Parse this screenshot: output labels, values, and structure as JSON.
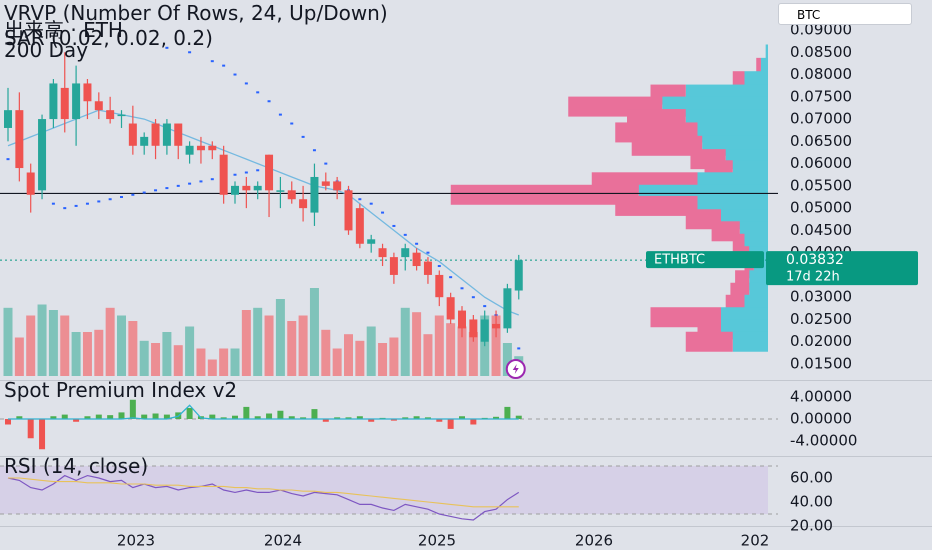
{
  "ticker": "BTC",
  "legend": {
    "line1": "VRVP (Number Of Rows, 24, Up/Down)",
    "line2": "出来高 · ETH",
    "line3": "SAR (0.02, 0.02, 0.2)",
    "line4": "200 Day"
  },
  "price_badge": {
    "symbol": "ETHBTC",
    "price": "0.03832",
    "countdown": "17d 22h"
  },
  "spot_title": "Spot Premium Index v2",
  "rsi_title": "RSI (14, close)",
  "colors": {
    "up": "#26a69a",
    "down": "#ef5350",
    "vol_up": "#7fc3ba",
    "vol_down": "#ec8e93",
    "vp_up": "#57c8d9",
    "vp_down": "#e9709a",
    "ma": "#74b9e0",
    "sar": "#2962ff",
    "rsi": "#7e57c2",
    "rsi_ma": "#e8c25a",
    "spot_line": "#2fb3d1",
    "spot_up": "#4caf50",
    "spot_down": "#ef5350",
    "badge": "#089981"
  },
  "chart_data": [
    {
      "type": "candlestick",
      "name": "ETHBTC",
      "yaxis_ticks": [
        "0.09000",
        "0.08500",
        "0.08000",
        "0.07500",
        "0.07000",
        "0.06500",
        "0.06000",
        "0.05500",
        "0.05000",
        "0.04500",
        "0.04000",
        "0.03500",
        "0.03000",
        "0.02500",
        "0.02000",
        "0.01500"
      ],
      "ylim": [
        0.015,
        0.09
      ],
      "xaxis_ticks": [
        "2023",
        "2024",
        "2025",
        "2026",
        "202"
      ],
      "horizontal_line": 0.0533,
      "last_price": 0.03832,
      "candles": [
        {
          "o": 0.068,
          "h": 0.077,
          "l": 0.065,
          "c": 0.072
        },
        {
          "o": 0.072,
          "h": 0.076,
          "l": 0.056,
          "c": 0.059
        },
        {
          "o": 0.058,
          "h": 0.06,
          "l": 0.049,
          "c": 0.053
        },
        {
          "o": 0.054,
          "h": 0.071,
          "l": 0.052,
          "c": 0.07
        },
        {
          "o": 0.07,
          "h": 0.079,
          "l": 0.068,
          "c": 0.078
        },
        {
          "o": 0.077,
          "h": 0.085,
          "l": 0.067,
          "c": 0.07
        },
        {
          "o": 0.07,
          "h": 0.082,
          "l": 0.064,
          "c": 0.078
        },
        {
          "o": 0.078,
          "h": 0.079,
          "l": 0.07,
          "c": 0.074
        },
        {
          "o": 0.074,
          "h": 0.076,
          "l": 0.07,
          "c": 0.072
        },
        {
          "o": 0.072,
          "h": 0.075,
          "l": 0.069,
          "c": 0.07
        },
        {
          "o": 0.071,
          "h": 0.072,
          "l": 0.068,
          "c": 0.071
        },
        {
          "o": 0.069,
          "h": 0.073,
          "l": 0.062,
          "c": 0.064
        },
        {
          "o": 0.064,
          "h": 0.067,
          "l": 0.062,
          "c": 0.066
        },
        {
          "o": 0.069,
          "h": 0.07,
          "l": 0.061,
          "c": 0.064
        },
        {
          "o": 0.064,
          "h": 0.07,
          "l": 0.062,
          "c": 0.069
        },
        {
          "o": 0.069,
          "h": 0.069,
          "l": 0.061,
          "c": 0.064
        },
        {
          "o": 0.062,
          "h": 0.065,
          "l": 0.06,
          "c": 0.064
        },
        {
          "o": 0.064,
          "h": 0.066,
          "l": 0.06,
          "c": 0.063
        },
        {
          "o": 0.064,
          "h": 0.065,
          "l": 0.061,
          "c": 0.063
        },
        {
          "o": 0.062,
          "h": 0.064,
          "l": 0.051,
          "c": 0.053
        },
        {
          "o": 0.053,
          "h": 0.056,
          "l": 0.051,
          "c": 0.055
        },
        {
          "o": 0.055,
          "h": 0.057,
          "l": 0.05,
          "c": 0.054
        },
        {
          "o": 0.054,
          "h": 0.056,
          "l": 0.052,
          "c": 0.055
        },
        {
          "o": 0.062,
          "h": 0.062,
          "l": 0.048,
          "c": 0.054
        },
        {
          "o": 0.054,
          "h": 0.057,
          "l": 0.05,
          "c": 0.054
        },
        {
          "o": 0.054,
          "h": 0.056,
          "l": 0.051,
          "c": 0.052
        },
        {
          "o": 0.052,
          "h": 0.055,
          "l": 0.047,
          "c": 0.05
        },
        {
          "o": 0.049,
          "h": 0.06,
          "l": 0.046,
          "c": 0.057
        },
        {
          "o": 0.056,
          "h": 0.058,
          "l": 0.054,
          "c": 0.055
        },
        {
          "o": 0.056,
          "h": 0.057,
          "l": 0.052,
          "c": 0.054
        },
        {
          "o": 0.054,
          "h": 0.055,
          "l": 0.044,
          "c": 0.045
        },
        {
          "o": 0.05,
          "h": 0.051,
          "l": 0.041,
          "c": 0.042
        },
        {
          "o": 0.042,
          "h": 0.044,
          "l": 0.04,
          "c": 0.043
        },
        {
          "o": 0.041,
          "h": 0.042,
          "l": 0.037,
          "c": 0.039
        },
        {
          "o": 0.039,
          "h": 0.04,
          "l": 0.033,
          "c": 0.035
        },
        {
          "o": 0.039,
          "h": 0.042,
          "l": 0.036,
          "c": 0.041
        },
        {
          "o": 0.04,
          "h": 0.041,
          "l": 0.036,
          "c": 0.037
        },
        {
          "o": 0.038,
          "h": 0.039,
          "l": 0.033,
          "c": 0.035
        },
        {
          "o": 0.035,
          "h": 0.036,
          "l": 0.028,
          "c": 0.03
        },
        {
          "o": 0.03,
          "h": 0.031,
          "l": 0.024,
          "c": 0.025
        },
        {
          "o": 0.027,
          "h": 0.028,
          "l": 0.021,
          "c": 0.023
        },
        {
          "o": 0.025,
          "h": 0.026,
          "l": 0.02,
          "c": 0.021
        },
        {
          "o": 0.02,
          "h": 0.027,
          "l": 0.019,
          "c": 0.025
        },
        {
          "o": 0.024,
          "h": 0.027,
          "l": 0.021,
          "c": 0.023
        },
        {
          "o": 0.023,
          "h": 0.033,
          "l": 0.022,
          "c": 0.032
        },
        {
          "o": 0.0315,
          "h": 0.0395,
          "l": 0.0295,
          "c": 0.0383
        }
      ],
      "moving_average": [
        0.064,
        0.065,
        0.066,
        0.067,
        0.068,
        0.069,
        0.07,
        0.071,
        0.072,
        0.0715,
        0.071,
        0.0705,
        0.07,
        0.069,
        0.068,
        0.067,
        0.066,
        0.065,
        0.064,
        0.063,
        0.062,
        0.061,
        0.06,
        0.059,
        0.058,
        0.057,
        0.056,
        0.055,
        0.0545,
        0.054,
        0.053,
        0.051,
        0.049,
        0.047,
        0.045,
        0.043,
        0.041,
        0.0395,
        0.038,
        0.036,
        0.034,
        0.032,
        0.03,
        0.0285,
        0.027,
        0.026
      ],
      "sar": [
        {
          "i": 0,
          "v": 0.061
        },
        {
          "i": 1,
          "v": 0.06
        },
        {
          "i": 4,
          "v": 0.051
        },
        {
          "i": 5,
          "v": 0.05
        },
        {
          "i": 6,
          "v": 0.0505
        },
        {
          "i": 7,
          "v": 0.051
        },
        {
          "i": 8,
          "v": 0.0515
        },
        {
          "i": 9,
          "v": 0.052
        },
        {
          "i": 10,
          "v": 0.0525
        },
        {
          "i": 11,
          "v": 0.053
        },
        {
          "i": 12,
          "v": 0.0535
        },
        {
          "i": 13,
          "v": 0.054
        },
        {
          "i": 14,
          "v": 0.0545
        },
        {
          "i": 15,
          "v": 0.055
        },
        {
          "i": 16,
          "v": 0.0555
        },
        {
          "i": 17,
          "v": 0.056
        },
        {
          "i": 18,
          "v": 0.0565
        },
        {
          "i": 19,
          "v": 0.057
        },
        {
          "i": 20,
          "v": 0.0575
        },
        {
          "i": 21,
          "v": 0.058
        },
        {
          "i": 22,
          "v": 0.0585
        },
        {
          "i": 23,
          "v": 0.059
        },
        {
          "i": 14,
          "v": 0.086
        },
        {
          "i": 16,
          "v": 0.085
        },
        {
          "i": 18,
          "v": 0.083
        },
        {
          "i": 19,
          "v": 0.082
        },
        {
          "i": 20,
          "v": 0.08
        },
        {
          "i": 21,
          "v": 0.078
        },
        {
          "i": 22,
          "v": 0.076
        },
        {
          "i": 23,
          "v": 0.074
        },
        {
          "i": 24,
          "v": 0.071
        },
        {
          "i": 25,
          "v": 0.069
        },
        {
          "i": 26,
          "v": 0.066
        },
        {
          "i": 27,
          "v": 0.063
        },
        {
          "i": 28,
          "v": 0.06
        },
        {
          "i": 29,
          "v": 0.056
        },
        {
          "i": 30,
          "v": 0.054
        },
        {
          "i": 31,
          "v": 0.052
        },
        {
          "i": 32,
          "v": 0.051
        },
        {
          "i": 33,
          "v": 0.049
        },
        {
          "i": 34,
          "v": 0.046
        },
        {
          "i": 35,
          "v": 0.044
        },
        {
          "i": 36,
          "v": 0.042
        },
        {
          "i": 37,
          "v": 0.04
        },
        {
          "i": 38,
          "v": 0.037
        },
        {
          "i": 39,
          "v": 0.0345
        },
        {
          "i": 40,
          "v": 0.032
        },
        {
          "i": 41,
          "v": 0.03
        },
        {
          "i": 42,
          "v": 0.028
        },
        {
          "i": 43,
          "v": 0.026
        },
        {
          "i": 45,
          "v": 0.0185
        }
      ],
      "volume": [
        0.62,
        0.35,
        0.55,
        0.65,
        0.6,
        0.55,
        0.4,
        0.4,
        0.42,
        0.62,
        0.55,
        0.5,
        0.32,
        0.3,
        0.4,
        0.28,
        0.45,
        0.25,
        0.15,
        0.25,
        0.25,
        0.6,
        0.62,
        0.55,
        0.7,
        0.5,
        0.55,
        0.8,
        0.42,
        0.25,
        0.38,
        0.32,
        0.45,
        0.3,
        0.35,
        0.62,
        0.58,
        0.38,
        0.55,
        0.48,
        0.45,
        0.4,
        0.55,
        0.55,
        0.3,
        0.18
      ],
      "volume_profile": [
        {
          "price": 0.0845,
          "up": 0.01,
          "down": 0.0
        },
        {
          "price": 0.0815,
          "up": 0.03,
          "down": 0.02
        },
        {
          "price": 0.0785,
          "up": 0.1,
          "down": 0.05
        },
        {
          "price": 0.0755,
          "up": 0.35,
          "down": 0.15
        },
        {
          "price": 0.0728,
          "up": 0.45,
          "down": 0.4
        },
        {
          "price": 0.07,
          "up": 0.35,
          "down": 0.25
        },
        {
          "price": 0.067,
          "up": 0.3,
          "down": 0.35
        },
        {
          "price": 0.064,
          "up": 0.28,
          "down": 0.3
        },
        {
          "price": 0.061,
          "up": 0.18,
          "down": 0.15
        },
        {
          "price": 0.0585,
          "up": 0.15,
          "down": 0.12
        },
        {
          "price": 0.0558,
          "up": 0.3,
          "down": 0.45
        },
        {
          "price": 0.053,
          "up": 0.55,
          "down": 0.8
        },
        {
          "price": 0.0505,
          "up": 0.3,
          "down": 0.35
        },
        {
          "price": 0.0475,
          "up": 0.2,
          "down": 0.15
        },
        {
          "price": 0.0448,
          "up": 0.12,
          "down": 0.12
        },
        {
          "price": 0.042,
          "up": 0.1,
          "down": 0.05
        },
        {
          "price": 0.0392,
          "up": 0.08,
          "down": 0.04
        },
        {
          "price": 0.0365,
          "up": 0.06,
          "down": 0.04
        },
        {
          "price": 0.0338,
          "up": 0.08,
          "down": 0.06
        },
        {
          "price": 0.031,
          "up": 0.08,
          "down": 0.08
        },
        {
          "price": 0.0283,
          "up": 0.1,
          "down": 0.08
        },
        {
          "price": 0.0255,
          "up": 0.2,
          "down": 0.3
        },
        {
          "price": 0.0228,
          "up": 0.2,
          "down": 0.1
        },
        {
          "price": 0.02,
          "up": 0.15,
          "down": 0.2
        }
      ]
    },
    {
      "type": "bar",
      "name": "Spot Premium Index v2",
      "yaxis_ticks": [
        "4.00000",
        "0.00000",
        "-4.00000"
      ],
      "ylim": [
        -6,
        6
      ],
      "values": [
        -1.0,
        0.5,
        -3.5,
        -5.5,
        0.5,
        0.8,
        -0.5,
        0.5,
        0.8,
        0.7,
        1.2,
        3.5,
        0.8,
        1.0,
        0.8,
        1.2,
        2.0,
        0.5,
        0.8,
        0.3,
        0.6,
        2.2,
        0.5,
        1.0,
        1.5,
        0.5,
        0.3,
        1.8,
        -0.5,
        0.3,
        0.3,
        0.5,
        -0.5,
        0.2,
        -0.3,
        0.3,
        0.5,
        0.3,
        -0.5,
        -1.8,
        0.5,
        -1.0,
        0.2,
        0.4,
        2.2,
        0.6
      ],
      "line": [
        0,
        0,
        0,
        0,
        0,
        0,
        0,
        0,
        0,
        0,
        0,
        0.2,
        0,
        0,
        0,
        0.5,
        2.5,
        0.2,
        0,
        0,
        0,
        0,
        0,
        0,
        0,
        0,
        0,
        0,
        0,
        0,
        0,
        0,
        0,
        0,
        0,
        0,
        0,
        0,
        0,
        0,
        0,
        0,
        0,
        0,
        0,
        0
      ]
    },
    {
      "type": "line",
      "name": "RSI (14, close)",
      "yaxis_ticks": [
        "60.00",
        "40.00",
        "20.00"
      ],
      "ylim": [
        20,
        70
      ],
      "rsi": [
        60,
        58,
        52,
        50,
        55,
        62,
        58,
        62,
        60,
        57,
        58,
        52,
        55,
        52,
        53,
        50,
        52,
        53,
        55,
        50,
        48,
        50,
        48,
        48,
        50,
        47,
        45,
        48,
        47,
        46,
        42,
        38,
        38,
        35,
        33,
        38,
        36,
        34,
        30,
        28,
        26,
        25,
        32,
        34,
        42,
        48
      ],
      "rsi_ma": [
        60,
        60,
        59,
        58,
        57,
        57,
        57,
        56,
        56,
        56,
        55,
        55,
        55,
        54,
        54,
        54,
        53,
        53,
        53,
        53,
        52,
        52,
        51,
        51,
        50,
        50,
        49,
        49,
        48,
        48,
        47,
        46,
        45,
        44,
        43,
        42,
        41,
        40,
        39,
        38,
        37,
        36,
        36,
        36,
        36,
        36
      ]
    }
  ]
}
